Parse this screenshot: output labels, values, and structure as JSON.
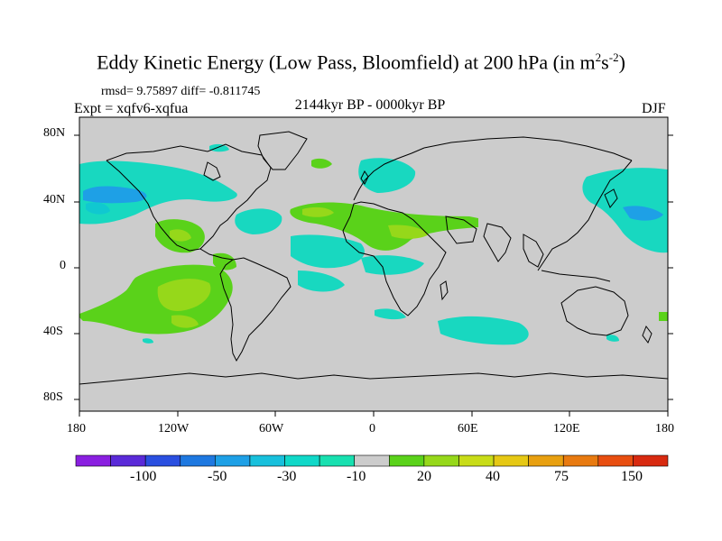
{
  "title": {
    "main": "Eddy Kinetic Energy (Low Pass, Bloomfield) at 200 hPa (in m",
    "sup1": "2",
    "mid": "s",
    "sup2": "-2",
    "end": ")"
  },
  "stats": "rmsd= 9.75897 diff= -0.811745",
  "experiment": "Expt = xqfv6-xqfua",
  "period": "2144kyr BP - 0000kyr BP",
  "season": "DJF",
  "axes": {
    "lat_labels": [
      "80N",
      "40N",
      "0",
      "40S",
      "80S"
    ],
    "lon_labels": [
      "180",
      "120W",
      "60W",
      "0",
      "60E",
      "120E",
      "180"
    ]
  },
  "colorbar": {
    "labels": [
      "-100",
      "-50",
      "-30",
      "-10",
      "20",
      "40",
      "75",
      "150"
    ],
    "colors": [
      "#8a1fe0",
      "#5a2ad8",
      "#2a4fe0",
      "#1e78e0",
      "#1ea0e6",
      "#18c0dc",
      "#10d8c8",
      "#18e0b0",
      "#cccccc",
      "#5ad21a",
      "#96d81a",
      "#c8dc18",
      "#e6c814",
      "#e8a010",
      "#e87a10",
      "#e84e10",
      "#d82a10"
    ]
  },
  "colors": {
    "background": "#cccccc",
    "coast": "#000000",
    "cyan": "#18d8c0",
    "teal": "#10c8d0",
    "blue": "#1ea0e6",
    "green": "#5ad21a",
    "lime": "#96d81a"
  }
}
